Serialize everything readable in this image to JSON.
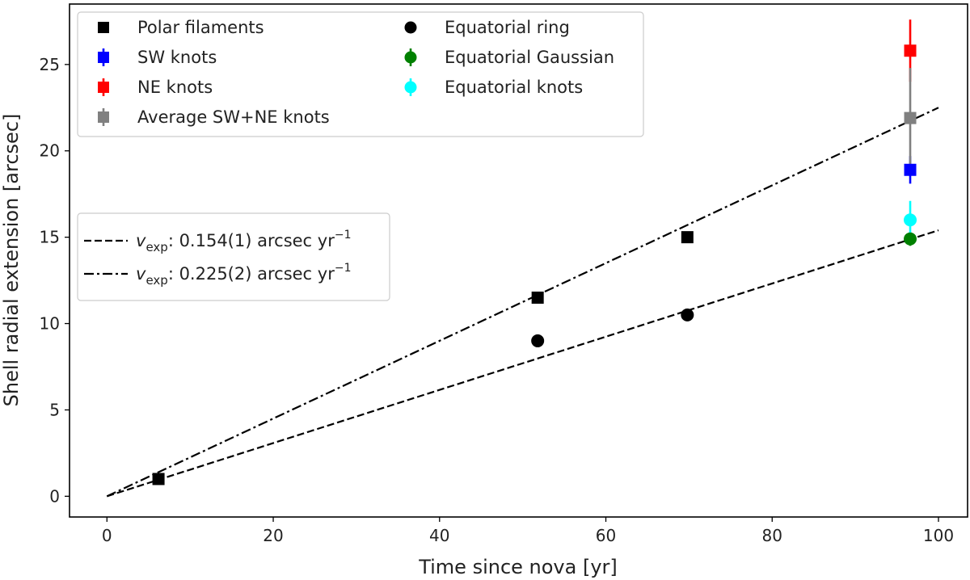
{
  "chart_data": {
    "type": "scatter",
    "xlabel": "Time since nova [yr]",
    "ylabel": "Shell radial extension [arcsec]",
    "xlim": [
      -4.5,
      103.5
    ],
    "ylim": [
      -1.2,
      28.5
    ],
    "xticks": [
      0,
      20,
      40,
      60,
      80,
      100
    ],
    "yticks": [
      0,
      5,
      10,
      15,
      20,
      25
    ],
    "grid": false,
    "legend_markers_placement": "top-left",
    "legend_lines_placement": "center-left",
    "series": [
      {
        "name": "Polar filaments",
        "marker": "square",
        "color": "#000000",
        "points": [
          {
            "x": 6.2,
            "y": 1.0
          },
          {
            "x": 51.8,
            "y": 11.5
          },
          {
            "x": 69.8,
            "y": 15.0
          }
        ]
      },
      {
        "name": "SW knots",
        "marker": "square",
        "color": "#0000ff",
        "points": [
          {
            "x": 96.6,
            "y": 18.9,
            "yerr": 0.8
          }
        ]
      },
      {
        "name": "NE knots",
        "marker": "square",
        "color": "#ff0000",
        "points": [
          {
            "x": 96.6,
            "y": 25.8,
            "yerr": 1.8
          }
        ]
      },
      {
        "name": "Average SW+NE knots",
        "marker": "square",
        "color": "#808080",
        "points": [
          {
            "x": 96.6,
            "y": 21.9,
            "yerr": 2.9
          }
        ]
      },
      {
        "name": "Equatorial ring",
        "marker": "circle",
        "color": "#000000",
        "points": [
          {
            "x": 51.8,
            "y": 9.0
          },
          {
            "x": 69.8,
            "y": 10.5
          }
        ]
      },
      {
        "name": "Equatorial Gaussian",
        "marker": "circle",
        "color": "#008000",
        "points": [
          {
            "x": 96.6,
            "y": 14.9,
            "yerr": 0.4
          }
        ]
      },
      {
        "name": "Equatorial knots",
        "marker": "circle",
        "color": "#00ffff",
        "points": [
          {
            "x": 96.6,
            "y": 16.0,
            "yerr": 1.1
          }
        ]
      }
    ],
    "fit_lines": [
      {
        "label_var": "v",
        "label_sub": "exp",
        "label_value": ": 0.154(1) arcsec yr",
        "label_sup": "−1",
        "style": "dashed",
        "slope": 0.154,
        "x_range": [
          0,
          100
        ]
      },
      {
        "label_var": "v",
        "label_sub": "exp",
        "label_value": ": 0.225(2) arcsec yr",
        "label_sup": "−1",
        "style": "dashdot",
        "slope": 0.225,
        "x_range": [
          0,
          100
        ]
      }
    ]
  }
}
